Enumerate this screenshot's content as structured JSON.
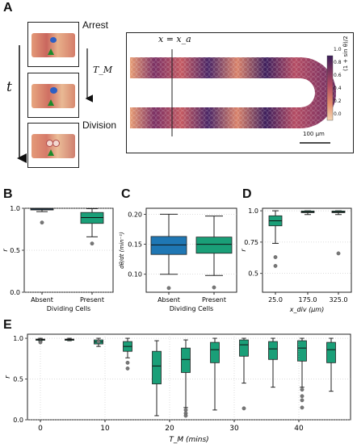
{
  "panel_labels": {
    "A": "A",
    "B": "B",
    "C": "C",
    "D": "D",
    "E": "E"
  },
  "panel_a": {
    "arrest_label": "Arrest",
    "division_label": "Division",
    "time_axis_label": "t",
    "tm_label": "T_M",
    "position_label": "x = x_a",
    "scalebar_label": "100 μm",
    "colorbar_ticks": [
      "1.0",
      "0.8",
      "0.6",
      "0.4",
      "0.2",
      "0.0"
    ],
    "colorbar_label": "(1 + sin θ)/2",
    "colors": {
      "low": "#f7d9b5",
      "mid": "#d8706b",
      "high": "#3b1d59"
    }
  },
  "chart_data": [
    {
      "id": "B",
      "type": "box",
      "categories": [
        "Absent",
        "Present"
      ],
      "xlabel": "Dividing Cells",
      "ylabel": "r",
      "ylim": [
        0.0,
        1.0
      ],
      "yticks": [
        "0.0",
        "0.5",
        "1.0"
      ],
      "colors": [
        "#1f77b4",
        "#1a9f78"
      ],
      "boxes": [
        {
          "q1": 0.98,
          "med": 0.99,
          "q3": 1.0,
          "lo": 0.96,
          "hi": 1.0,
          "outliers": [
            0.83
          ]
        },
        {
          "q1": 0.82,
          "med": 0.89,
          "q3": 0.95,
          "lo": 0.66,
          "hi": 0.995,
          "outliers": [
            0.58
          ]
        }
      ]
    },
    {
      "id": "C",
      "type": "box",
      "categories": [
        "Absent",
        "Present"
      ],
      "xlabel": "Dividing Cells",
      "ylabel": "dθ/dt (min⁻¹)",
      "ylim": [
        0.07,
        0.21
      ],
      "yticks": [
        "0.10",
        "0.15",
        "0.20"
      ],
      "colors": [
        "#1f77b4",
        "#1a9f78"
      ],
      "boxes": [
        {
          "q1": 0.133,
          "med": 0.149,
          "q3": 0.163,
          "lo": 0.1,
          "hi": 0.2,
          "outliers": [
            0.077
          ]
        },
        {
          "q1": 0.135,
          "med": 0.15,
          "q3": 0.162,
          "lo": 0.098,
          "hi": 0.197,
          "outliers": [
            0.078
          ]
        }
      ]
    },
    {
      "id": "D",
      "type": "box",
      "categories": [
        "25.0",
        "175.0",
        "325.0"
      ],
      "xlabel": "x_div (μm)",
      "ylabel": "r",
      "ylim": [
        0.35,
        1.02
      ],
      "yticks": [
        "0.5",
        "0.75",
        "1.0"
      ],
      "colors": [
        "#1a9f78",
        "#1a9f78",
        "#1a9f78"
      ],
      "boxes": [
        {
          "q1": 0.88,
          "med": 0.92,
          "q3": 0.96,
          "lo": 0.74,
          "hi": 1.0,
          "outliers": [
            0.63,
            0.56
          ]
        },
        {
          "q1": 0.985,
          "med": 0.99,
          "q3": 0.998,
          "lo": 0.97,
          "hi": 1.0,
          "outliers": []
        },
        {
          "q1": 0.985,
          "med": 0.99,
          "q3": 0.998,
          "lo": 0.97,
          "hi": 1.0,
          "outliers": [
            0.66
          ]
        }
      ]
    },
    {
      "id": "E",
      "type": "box",
      "x": [
        0,
        4.5,
        9,
        13.5,
        18,
        22.5,
        27,
        31.5,
        36,
        40.5,
        45
      ],
      "xticks": [
        "0",
        "10",
        "20",
        "30",
        "40"
      ],
      "xlabel": "T_M (mins)",
      "ylabel": "r",
      "ylim": [
        0.0,
        1.05
      ],
      "yticks": [
        "0.0",
        "0.5",
        "1.0"
      ],
      "color": "#1a9f78",
      "boxes": [
        {
          "q1": 0.98,
          "med": 0.985,
          "q3": 0.99,
          "lo": 0.97,
          "hi": 1.0,
          "outliers": [
            0.95
          ]
        },
        {
          "q1": 0.98,
          "med": 0.985,
          "q3": 0.99,
          "lo": 0.97,
          "hi": 1.0,
          "outliers": []
        },
        {
          "q1": 0.93,
          "med": 0.955,
          "q3": 0.98,
          "lo": 0.9,
          "hi": 1.0,
          "outliers": [
            0.96
          ]
        },
        {
          "q1": 0.84,
          "med": 0.9,
          "q3": 0.96,
          "lo": 0.76,
          "hi": 1.0,
          "outliers": [
            0.7,
            0.63
          ]
        },
        {
          "q1": 0.44,
          "med": 0.66,
          "q3": 0.84,
          "lo": 0.05,
          "hi": 0.97,
          "outliers": []
        },
        {
          "q1": 0.58,
          "med": 0.74,
          "q3": 0.88,
          "lo": 0.15,
          "hi": 0.98,
          "outliers": [
            0.12,
            0.08,
            0.05
          ]
        },
        {
          "q1": 0.7,
          "med": 0.86,
          "q3": 0.95,
          "lo": 0.12,
          "hi": 1.0,
          "outliers": []
        },
        {
          "q1": 0.78,
          "med": 0.92,
          "q3": 0.98,
          "lo": 0.45,
          "hi": 1.0,
          "outliers": [
            0.14
          ]
        },
        {
          "q1": 0.74,
          "med": 0.87,
          "q3": 0.96,
          "lo": 0.4,
          "hi": 1.0,
          "outliers": []
        },
        {
          "q1": 0.72,
          "med": 0.88,
          "q3": 0.97,
          "lo": 0.4,
          "hi": 1.0,
          "outliers": [
            0.37,
            0.29,
            0.24,
            0.15
          ]
        },
        {
          "q1": 0.7,
          "med": 0.86,
          "q3": 0.95,
          "lo": 0.35,
          "hi": 1.0,
          "outliers": []
        }
      ]
    }
  ]
}
